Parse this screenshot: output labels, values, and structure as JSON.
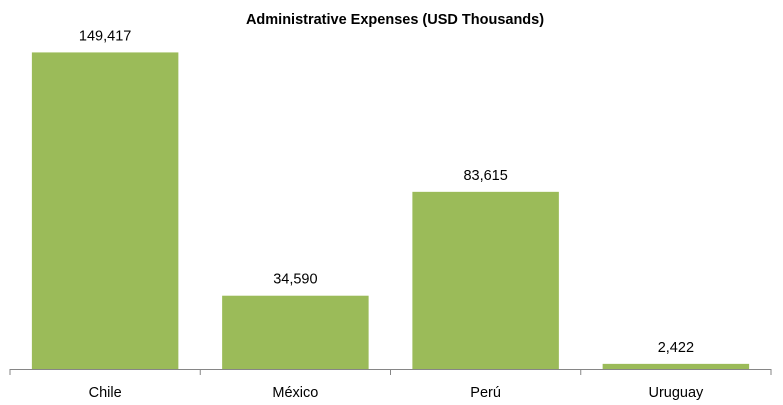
{
  "chart_data": {
    "type": "bar",
    "title": "Administrative Expenses (USD Thousands)",
    "xlabel": "",
    "ylabel": "",
    "categories": [
      "Chile",
      "México",
      "Perú",
      "Uruguay"
    ],
    "values": [
      149417,
      34590,
      83615,
      2422
    ],
    "value_labels": [
      "149,417",
      "34,590",
      "83,615",
      "2,422"
    ],
    "ylim": [
      0,
      160000
    ],
    "grid": false,
    "legend": "none",
    "bar_color": "#9BBB59",
    "axis_color": "#868686"
  }
}
